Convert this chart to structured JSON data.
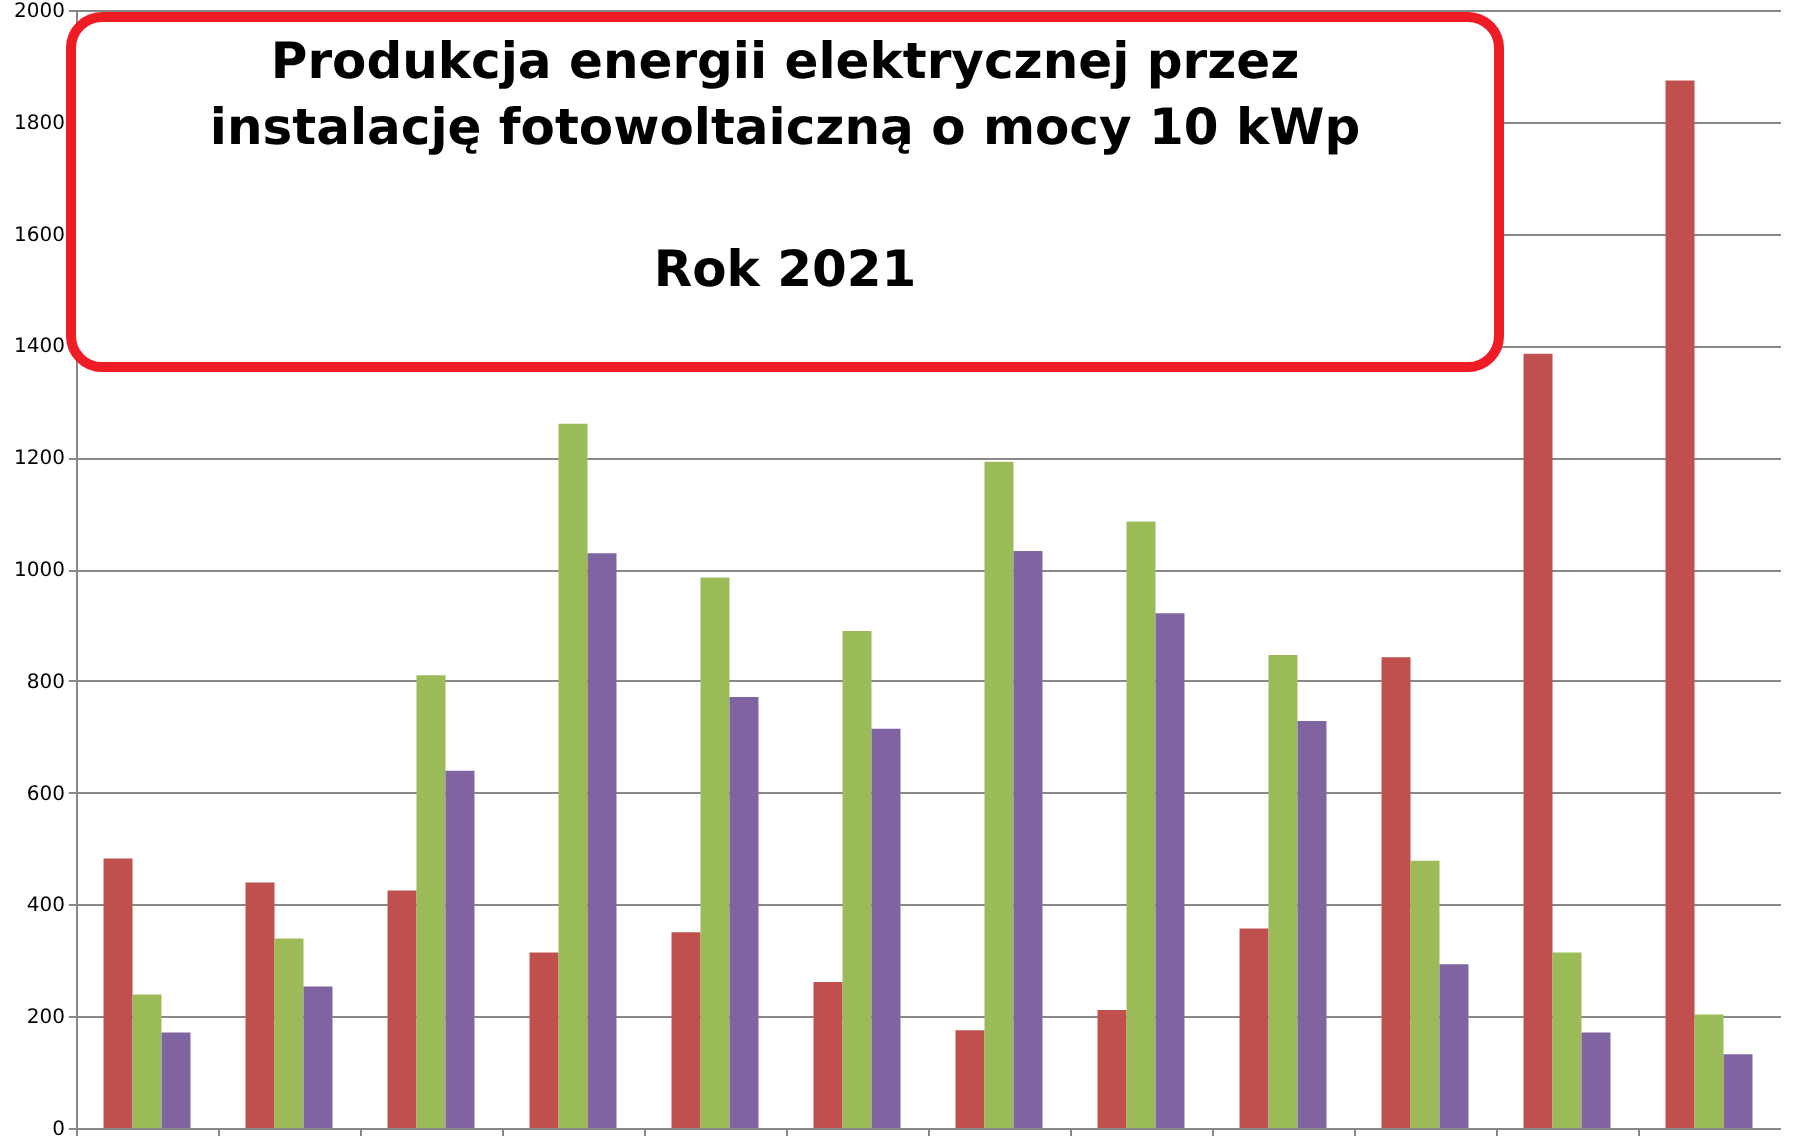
{
  "chart_data": {
    "type": "bar",
    "title": "Produkcja energii elektrycznej przez instalację fotowoltaiczną o mocy 10 kWp",
    "subtitle": "Rok 2021",
    "categories": [
      null,
      null,
      null,
      null,
      null,
      null,
      null,
      null,
      null,
      null,
      null,
      null
    ],
    "series": [
      {
        "color": "#c0504d",
        "values": [
          482,
          439,
          425,
          314,
          350,
          261,
          175,
          211,
          357,
          842,
          1385,
          1874
        ]
      },
      {
        "color": "#9bbb59",
        "values": [
          239,
          339,
          810,
          1260,
          985,
          889,
          1192,
          1085,
          846,
          478,
          314,
          203
        ]
      },
      {
        "color": "#8064a2",
        "values": [
          171,
          253,
          639,
          1028,
          771,
          714,
          1032,
          921,
          728,
          293,
          171,
          132
        ]
      }
    ],
    "ylim": [
      0,
      2000
    ],
    "yticks": [
      0,
      200,
      400,
      600,
      800,
      1000,
      1200,
      1400,
      1600,
      1800,
      2000
    ],
    "grid": "y",
    "tick_labels": "y"
  }
}
